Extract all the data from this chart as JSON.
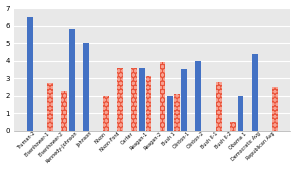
{
  "categories": [
    "Truman-2",
    "Eisenhower-1",
    "Eisenhower-2",
    "Kennedy-Johnson",
    "Johnson",
    "Nixon",
    "Nixon-Ford",
    "Carter",
    "Reagan-1",
    "Reagan-2",
    "Bush 1",
    "Clinton-1",
    "Clinton-2",
    "Bush II-1",
    "Bush II-2",
    "Obama 1",
    "Democratic Avg",
    "Republican Avg"
  ],
  "blue_values": [
    6.5,
    0,
    0,
    5.8,
    5.0,
    0,
    0,
    0,
    3.6,
    0,
    2.0,
    3.5,
    4.0,
    0,
    0,
    2.0,
    4.4,
    0
  ],
  "red_values": [
    0,
    2.7,
    2.3,
    0,
    0,
    2.0,
    3.6,
    3.6,
    3.1,
    3.9,
    2.1,
    0,
    0,
    2.8,
    0.5,
    0,
    0,
    2.5
  ],
  "blue_color": "#4472C4",
  "red_color": "#E8533A",
  "ylim": [
    0,
    7
  ],
  "yticks": [
    0,
    1,
    2,
    3,
    4,
    5,
    6,
    7
  ],
  "plot_bg": "#E8E8E8",
  "fig_bg": "#FFFFFF",
  "grid_color": "#FFFFFF"
}
